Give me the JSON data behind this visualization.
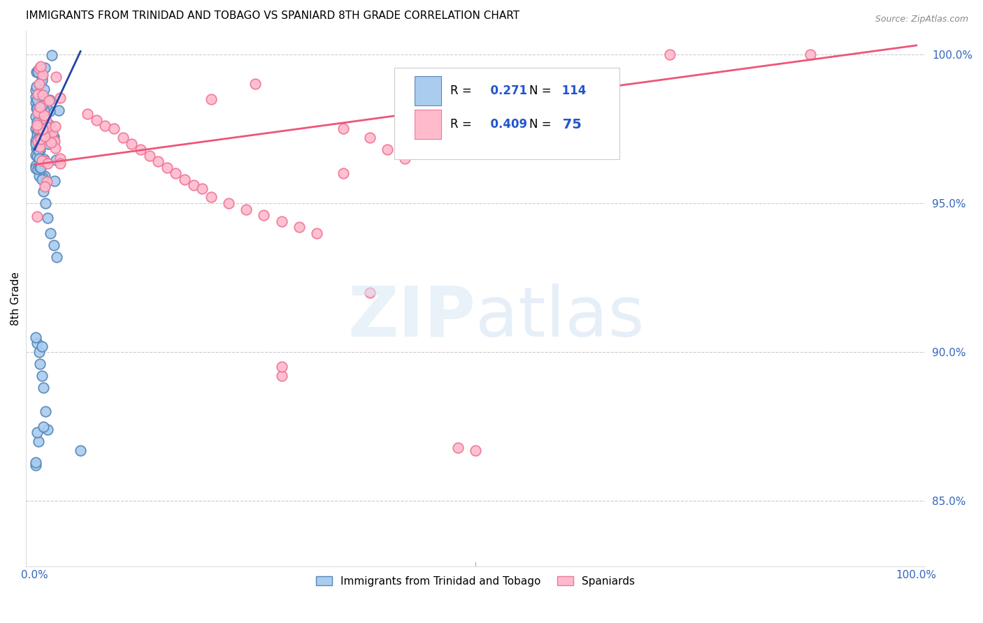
{
  "title": "IMMIGRANTS FROM TRINIDAD AND TOBAGO VS SPANIARD 8TH GRADE CORRELATION CHART",
  "source": "Source: ZipAtlas.com",
  "ylabel": "8th Grade",
  "legend_label1": "Immigrants from Trinidad and Tobago",
  "legend_label2": "Spaniards",
  "R1": 0.271,
  "N1": 114,
  "R2": 0.409,
  "N2": 75,
  "color_blue_face": "#AACCEE",
  "color_blue_edge": "#5588BB",
  "color_pink_face": "#FFBBCC",
  "color_pink_edge": "#EE7799",
  "line_color_blue": "#2244AA",
  "line_color_pink": "#EE5577",
  "watermark_zip": "ZIP",
  "watermark_atlas": "atlas",
  "xmin": 0.0,
  "xmax": 1.0,
  "ymin": 0.828,
  "ymax": 1.008,
  "right_yticks": [
    1.0,
    0.95,
    0.9,
    0.85
  ],
  "right_yticklabels": [
    "100.0%",
    "95.0%",
    "90.0%",
    "85.0%"
  ]
}
